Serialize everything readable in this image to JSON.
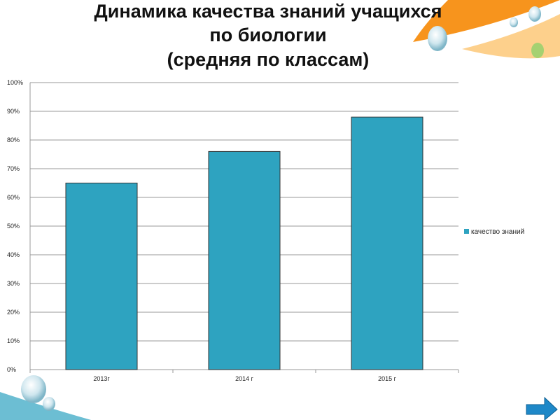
{
  "chart_data": {
    "type": "bar",
    "title": [
      "Динамика качества знаний учащихся",
      "по биологии",
      "(средняя по классам)"
    ],
    "categories": [
      "2013г",
      "2014 г",
      "2015 г"
    ],
    "series": [
      {
        "name": "качество знаний",
        "color": "#2ea3c0",
        "values": [
          65,
          76,
          88
        ]
      }
    ],
    "ylim": [
      0,
      100
    ],
    "yticks": [
      {
        "value": 0,
        "label": "0%"
      },
      {
        "value": 10,
        "label": "10%"
      },
      {
        "value": 20,
        "label": "20%"
      },
      {
        "value": 30,
        "label": "30%"
      },
      {
        "value": 40,
        "label": "40%"
      },
      {
        "value": 50,
        "label": "50%"
      },
      {
        "value": 60,
        "label": "60%"
      },
      {
        "value": 70,
        "label": "70%"
      },
      {
        "value": 80,
        "label": "80%"
      },
      {
        "value": 90,
        "label": "90%"
      },
      {
        "value": 100,
        "label": "100%"
      }
    ],
    "grid": true,
    "legend": "right"
  }
}
